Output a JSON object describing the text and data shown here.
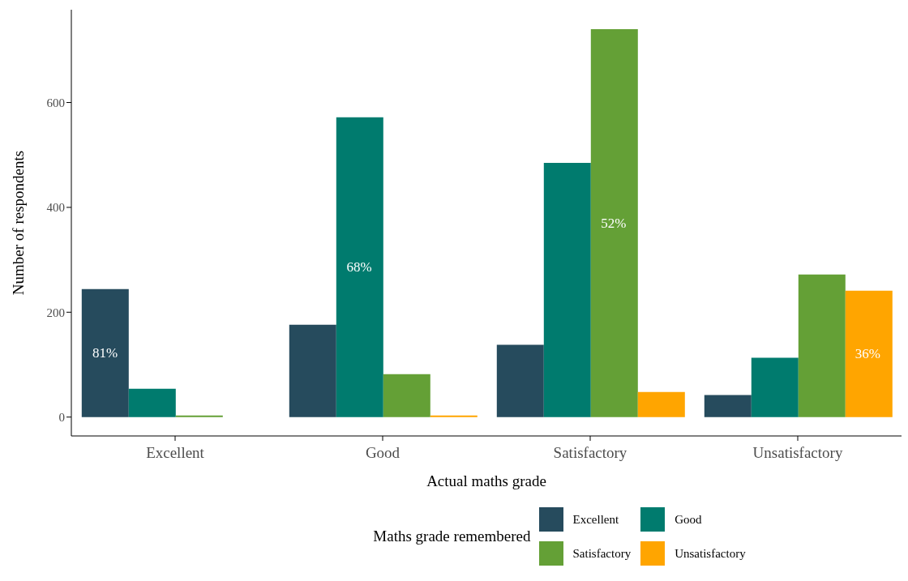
{
  "chart_data": {
    "type": "bar",
    "xlabel": "Actual maths grade",
    "ylabel": "Number of respondents",
    "legend_title": "Maths grade remembered",
    "categories": [
      "Excellent",
      "Good",
      "Satisfactory",
      "Unsatisfactory"
    ],
    "series": [
      {
        "name": "Excellent",
        "color": "#264b5d",
        "values": [
          244,
          176,
          138,
          42
        ]
      },
      {
        "name": "Good",
        "color": "#007b6e",
        "values": [
          54,
          572,
          485,
          113
        ]
      },
      {
        "name": "Satisfactory",
        "color": "#64a036",
        "values": [
          3,
          82,
          740,
          272
        ]
      },
      {
        "name": "Unsatisfactory",
        "color": "#ffa500",
        "values": [
          null,
          3,
          48,
          241
        ]
      }
    ],
    "annotations": [
      "81%",
      "68%",
      "52%",
      "36%"
    ],
    "ylim": [
      -36,
      777
    ],
    "yticks": [
      0,
      200,
      400,
      600
    ],
    "grid": false,
    "legend": "bottom"
  }
}
